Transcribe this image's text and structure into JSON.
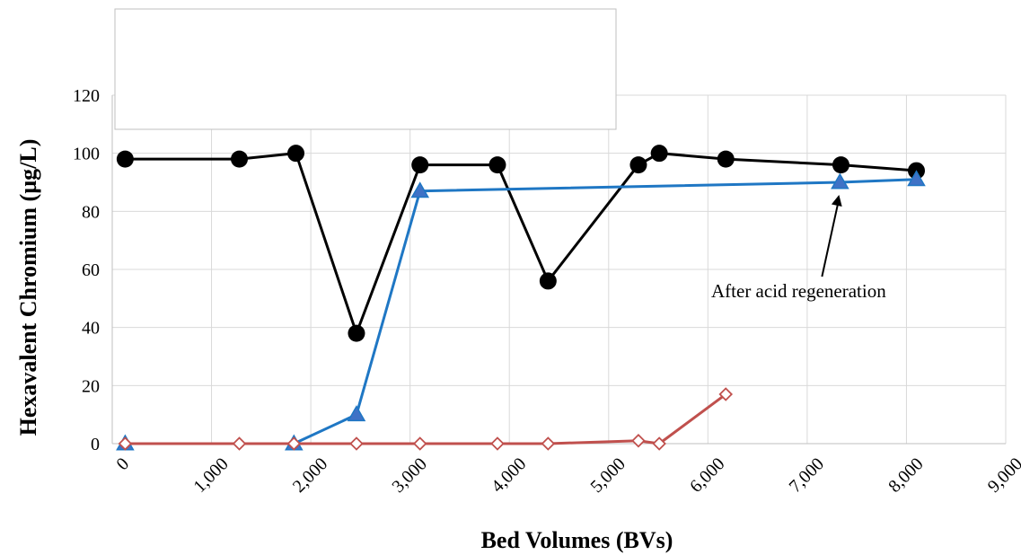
{
  "chart_data": {
    "type": "line",
    "xlabel": "Bed Volumes (BVs)",
    "ylabel": "Hexavalent Chromium (µg/L)",
    "xlim": [
      0,
      9000
    ],
    "ylim": [
      0,
      120
    ],
    "x_ticks": [
      "0",
      "1,000",
      "2,000",
      "3,000",
      "4,000",
      "5,000",
      "6,000",
      "7,000",
      "8,000",
      "9,000"
    ],
    "y_ticks": [
      "0",
      "20",
      "40",
      "60",
      "80",
      "100",
      "120"
    ],
    "grid": true,
    "legend_placement": "top-left (empty box)",
    "annotation": "After acid regeneration",
    "annotation_target": [
      7330,
      90
    ],
    "series": [
      {
        "color": "#000000",
        "marker": "circle-filled",
        "points": [
          [
            130,
            98
          ],
          [
            1280,
            98
          ],
          [
            1850,
            100
          ],
          [
            2460,
            38
          ],
          [
            3100,
            96
          ],
          [
            3880,
            96
          ],
          [
            4390,
            56
          ],
          [
            5300,
            96
          ],
          [
            5510,
            100
          ],
          [
            6180,
            98
          ],
          [
            7340,
            96
          ],
          [
            8100,
            94
          ]
        ]
      },
      {
        "color": "#1f77c4",
        "marker": "triangle-filled",
        "points": [
          [
            130,
            0
          ],
          [
            1830,
            0
          ],
          [
            2460,
            10
          ],
          [
            3100,
            87
          ],
          [
            7330,
            90
          ],
          [
            8100,
            91
          ]
        ]
      },
      {
        "color": "#c0504d",
        "marker": "diamond-open",
        "points": [
          [
            130,
            0
          ],
          [
            1280,
            0
          ],
          [
            1830,
            0
          ],
          [
            2460,
            0
          ],
          [
            3100,
            0
          ],
          [
            3880,
            0
          ],
          [
            4390,
            0
          ],
          [
            5300,
            1
          ],
          [
            5510,
            0
          ],
          [
            6180,
            17
          ]
        ]
      }
    ]
  }
}
